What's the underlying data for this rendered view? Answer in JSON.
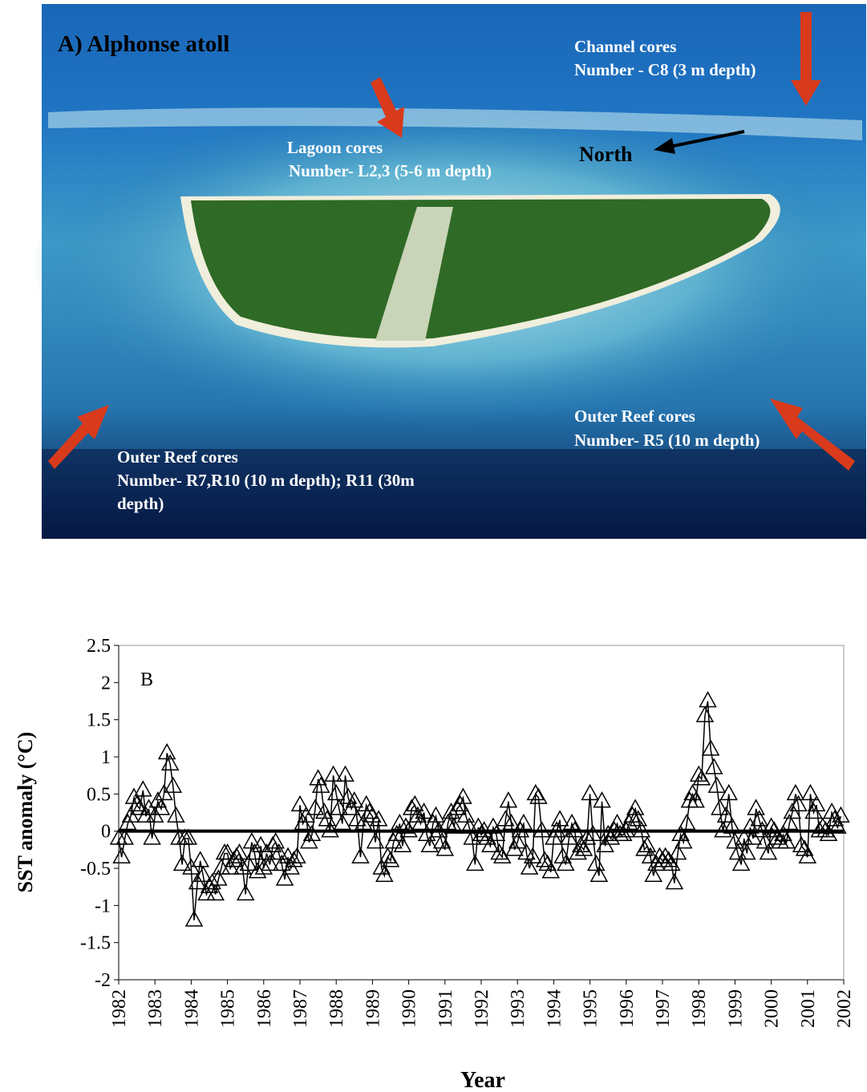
{
  "photo": {
    "title": "A) Alphonse atoll",
    "annotations": [
      {
        "heading": "Channel cores",
        "detail": "Number - C8  (3 m depth)"
      },
      {
        "heading": "Lagoon cores",
        "detail": "Number- L2,3  (5-6 m depth)"
      },
      {
        "heading": "Outer Reef cores",
        "detail": "Number- R5  (10 m depth)"
      },
      {
        "heading": "Outer Reef cores",
        "detail": "Number- R7,R10 (10 m depth); R11 (30m",
        "detail2": "depth)"
      }
    ],
    "north": "North"
  },
  "chart_data": {
    "type": "line",
    "panel_label": "B",
    "xlabel": "Year",
    "ylabel": "SST anomaly (°C)",
    "color": "#000000",
    "marker": "open-triangle",
    "xlim": [
      1982,
      2002
    ],
    "xticks": [
      1982,
      1983,
      1984,
      1985,
      1986,
      1987,
      1988,
      1989,
      1990,
      1991,
      1992,
      1993,
      1994,
      1995,
      1996,
      1997,
      1998,
      1999,
      2000,
      2001,
      2002
    ],
    "ylim": [
      -2,
      2.5
    ],
    "yticks": [
      -2,
      -1.5,
      -1,
      -0.5,
      0,
      0.5,
      1,
      1.5,
      2,
      2.5
    ],
    "x": [
      1982,
      1982.08,
      1982.17,
      1982.25,
      1982.33,
      1982.42,
      1982.5,
      1982.58,
      1982.67,
      1982.75,
      1982.83,
      1982.92,
      1983,
      1983.08,
      1983.17,
      1983.25,
      1983.33,
      1983.42,
      1983.5,
      1983.58,
      1983.67,
      1983.75,
      1983.83,
      1983.92,
      1984,
      1984.08,
      1984.17,
      1984.25,
      1984.33,
      1984.42,
      1984.5,
      1984.58,
      1984.67,
      1984.75,
      1984.83,
      1984.92,
      1985,
      1985.08,
      1985.17,
      1985.25,
      1985.33,
      1985.42,
      1985.5,
      1985.58,
      1985.67,
      1985.75,
      1985.83,
      1985.92,
      1986,
      1986.08,
      1986.17,
      1986.25,
      1986.33,
      1986.42,
      1986.5,
      1986.58,
      1986.67,
      1986.75,
      1986.83,
      1986.92,
      1987,
      1987.08,
      1987.17,
      1987.25,
      1987.33,
      1987.42,
      1987.5,
      1987.58,
      1987.67,
      1987.75,
      1987.83,
      1987.92,
      1988,
      1988.08,
      1988.17,
      1988.25,
      1988.33,
      1988.42,
      1988.5,
      1988.58,
      1988.67,
      1988.75,
      1988.83,
      1988.92,
      1989,
      1989.08,
      1989.17,
      1989.25,
      1989.33,
      1989.42,
      1989.5,
      1989.58,
      1989.67,
      1989.75,
      1989.83,
      1989.92,
      1990,
      1990.08,
      1990.17,
      1990.25,
      1990.33,
      1990.42,
      1990.5,
      1990.58,
      1990.67,
      1990.75,
      1990.83,
      1990.92,
      1991,
      1991.08,
      1991.17,
      1991.25,
      1991.33,
      1991.42,
      1991.5,
      1991.58,
      1991.67,
      1991.75,
      1991.83,
      1991.92,
      1992,
      1992.08,
      1992.17,
      1992.25,
      1992.33,
      1992.42,
      1992.5,
      1992.58,
      1992.67,
      1992.75,
      1992.83,
      1992.92,
      1993,
      1993.08,
      1993.17,
      1993.25,
      1993.33,
      1993.42,
      1993.5,
      1993.58,
      1993.67,
      1993.75,
      1993.83,
      1993.92,
      1994,
      1994.08,
      1994.17,
      1994.25,
      1994.33,
      1994.42,
      1994.5,
      1994.58,
      1994.67,
      1994.75,
      1994.83,
      1994.92,
      1995,
      1995.08,
      1995.17,
      1995.25,
      1995.33,
      1995.42,
      1995.5,
      1995.58,
      1995.67,
      1995.75,
      1995.83,
      1995.92,
      1996,
      1996.08,
      1996.17,
      1996.25,
      1996.33,
      1996.42,
      1996.5,
      1996.58,
      1996.67,
      1996.75,
      1996.83,
      1996.92,
      1997,
      1997.08,
      1997.17,
      1997.25,
      1997.33,
      1997.42,
      1997.5,
      1997.58,
      1997.67,
      1997.75,
      1997.83,
      1997.92,
      1998,
      1998.08,
      1998.17,
      1998.25,
      1998.33,
      1998.42,
      1998.5,
      1998.58,
      1998.67,
      1998.75,
      1998.83,
      1998.92,
      1999,
      1999.08,
      1999.17,
      1999.25,
      1999.33,
      1999.42,
      1999.5,
      1999.58,
      1999.67,
      1999.75,
      1999.83,
      1999.92,
      2000,
      2000.08,
      2000.17,
      2000.25,
      2000.33,
      2000.42,
      2000.5,
      2000.58,
      2000.67,
      2000.75,
      2000.83,
      2000.92,
      2001,
      2001.08,
      2001.17,
      2001.25,
      2001.33,
      2001.42,
      2001.5,
      2001.58,
      2001.67,
      2001.75,
      2001.83,
      2001.92
    ],
    "values": [
      -0.1,
      -0.35,
      -0.1,
      0.1,
      0.2,
      0.45,
      0.35,
      0.3,
      0.55,
      0.2,
      0.3,
      -0.1,
      0.2,
      0.4,
      0.3,
      0.5,
      1.05,
      0.9,
      0.6,
      0.2,
      -0.1,
      -0.45,
      -0.1,
      -0.1,
      -0.5,
      -1.2,
      -0.7,
      -0.4,
      -0.6,
      -0.85,
      -0.75,
      -0.7,
      -0.85,
      -0.65,
      -0.5,
      -0.3,
      -0.3,
      -0.5,
      -0.4,
      -0.35,
      -0.3,
      -0.5,
      -0.85,
      -0.45,
      -0.15,
      -0.3,
      -0.55,
      -0.2,
      -0.5,
      -0.3,
      -0.45,
      -0.2,
      -0.15,
      -0.3,
      -0.45,
      -0.65,
      -0.35,
      -0.5,
      -0.4,
      -0.35,
      0.35,
      0.1,
      0.2,
      -0.15,
      -0.05,
      0.3,
      0.7,
      0.6,
      0.25,
      0.15,
      0,
      0.75,
      0.5,
      0.3,
      0.1,
      0.75,
      0.45,
      0.3,
      0.4,
      0.15,
      -0.35,
      0.1,
      0.35,
      0.25,
      0.2,
      -0.15,
      0.15,
      -0.5,
      -0.6,
      -0.35,
      -0.4,
      -0.15,
      -0.05,
      0.1,
      -0.2,
      0.05,
      0,
      0.3,
      0.35,
      0.2,
      0.1,
      0.25,
      -0.05,
      -0.2,
      0.1,
      0.2,
      0,
      -0.15,
      -0.25,
      0.1,
      0.25,
      0.05,
      0.3,
      0.35,
      0.45,
      0.2,
      0.05,
      -0.1,
      -0.45,
      0.05,
      -0.05,
      0,
      -0.1,
      -0.2,
      0.05,
      -0.05,
      -0.3,
      -0.35,
      0.15,
      0.4,
      0.1,
      -0.25,
      -0.15,
      0,
      0.1,
      -0.3,
      -0.5,
      -0.35,
      0.5,
      0.45,
      0,
      -0.4,
      -0.45,
      -0.55,
      -0.1,
      0,
      0.15,
      -0.35,
      -0.45,
      -0.1,
      0.1,
      0,
      -0.3,
      -0.2,
      -0.25,
      -0.1,
      0.5,
      -0.05,
      -0.45,
      -0.6,
      0.4,
      -0.2,
      -0.05,
      -0.1,
      0,
      0.1,
      -0.05,
      -0.05,
      0,
      0.1,
      0.2,
      0.3,
      0.15,
      0,
      -0.25,
      -0.2,
      -0.35,
      -0.6,
      -0.45,
      -0.35,
      -0.4,
      -0.35,
      -0.4,
      -0.45,
      -0.7,
      -0.3,
      -0.05,
      -0.15,
      0.1,
      0.4,
      0.5,
      0.4,
      0.75,
      0.7,
      1.55,
      1.75,
      1.1,
      0.85,
      0.6,
      0.3,
      0,
      0.2,
      0.5,
      0.05,
      -0.15,
      -0.3,
      -0.45,
      -0.1,
      -0.3,
      0.05,
      -0.1,
      0.3,
      0.15,
      0,
      -0.15,
      -0.3,
      0.05,
      0,
      -0.1,
      -0.15,
      -0.05,
      -0.15,
      0.1,
      0.25,
      0.5,
      0.35,
      -0.2,
      -0.25,
      -0.35,
      0.5,
      0.25,
      0.35,
      0,
      0.05,
      0,
      -0.05,
      0.25,
      0.15,
      0.05,
      0.2
    ]
  }
}
